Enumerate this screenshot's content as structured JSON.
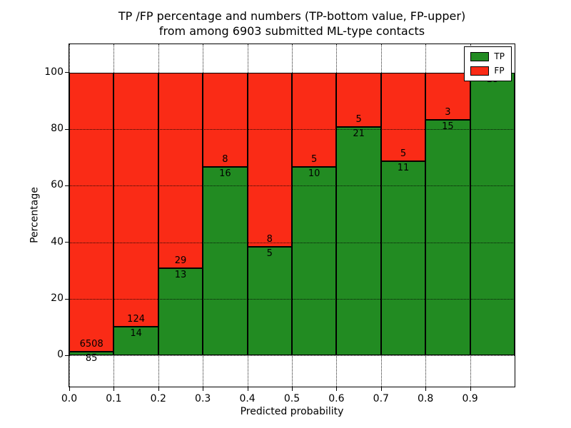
{
  "chart_data": {
    "type": "bar",
    "stacked": true,
    "title_line1": "TP /FP percentage and numbers (TP-bottom value, FP-upper)",
    "title_line2": "from among 6903 submitted ML-type contacts",
    "xlabel": "Predicted probability",
    "ylabel": "Percentage",
    "xlim": [
      0.0,
      1.0
    ],
    "ylim": [
      -11,
      110
    ],
    "x_tick_labels": [
      "0.0",
      "0.1",
      "0.2",
      "0.3",
      "0.4",
      "0.5",
      "0.6",
      "0.7",
      "0.8",
      "0.9"
    ],
    "y_tick_values": [
      0,
      20,
      40,
      60,
      80,
      100
    ],
    "y_tick_labels": [
      "0",
      "20",
      "40",
      "60",
      "80",
      "100"
    ],
    "grid": "dotted",
    "legend_position": "upper right",
    "series": [
      {
        "name": "TP",
        "color": "#228b22"
      },
      {
        "name": "FP",
        "color": "#fa2b16"
      }
    ],
    "bins": [
      {
        "range": "0.0-0.1",
        "tp": 85,
        "fp": 6508
      },
      {
        "range": "0.1-0.2",
        "tp": 14,
        "fp": 124
      },
      {
        "range": "0.2-0.3",
        "tp": 13,
        "fp": 29
      },
      {
        "range": "0.3-0.4",
        "tp": 16,
        "fp": 8
      },
      {
        "range": "0.4-0.5",
        "tp": 5,
        "fp": 8
      },
      {
        "range": "0.5-0.6",
        "tp": 10,
        "fp": 5
      },
      {
        "range": "0.6-0.7",
        "tp": 21,
        "fp": 5
      },
      {
        "range": "0.7-0.8",
        "tp": 11,
        "fp": 5
      },
      {
        "range": "0.8-0.9",
        "tp": 15,
        "fp": 3
      },
      {
        "range": "0.9-1.0",
        "tp": 18,
        "fp": 0
      }
    ]
  }
}
